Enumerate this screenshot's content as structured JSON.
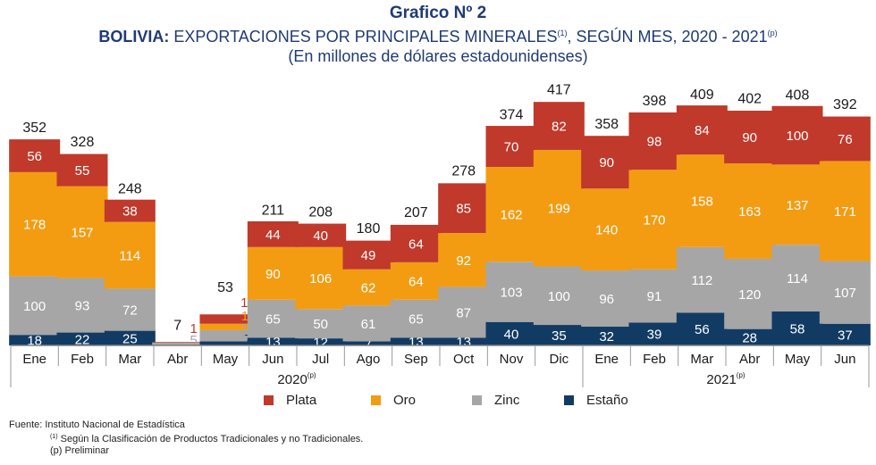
{
  "header": {
    "title": "Grafico Nº 2",
    "subtitle_bold": "BOLIVIA:",
    "subtitle_text": " EXPORTACIONES POR PRINCIPALES MINERALES",
    "subtitle_sup1": "(1)",
    "subtitle_text2": ", SEGÚN MES, 2020 - 2021",
    "subtitle_sup2": "(p)",
    "units": "(En millones de  dólares estadounidenses)"
  },
  "colors": {
    "Plata": "#c0392b",
    "Oro": "#f39c12",
    "Zinc": "#a6a6a6",
    "Estaño": "#123b64"
  },
  "legend": [
    {
      "label": "Plata",
      "color": "#c0392b"
    },
    {
      "label": "Oro",
      "color": "#f39c12"
    },
    {
      "label": "Zinc",
      "color": "#a6a6a6"
    },
    {
      "label": "Estaño",
      "color": "#123b64"
    }
  ],
  "footer": {
    "source": "Fuente: Instituto Nacional de Estadística",
    "note1_sup": "(1)",
    "note1": " Según la Clasificación de Productos Tradicionales y no Tradicionales.",
    "note2": "(p) Preliminar"
  },
  "chart_data": {
    "type": "bar",
    "stacked": true,
    "categories": [
      "Ene",
      "Feb",
      "Mar",
      "Abr",
      "May",
      "Jun",
      "Jul",
      "Ago",
      "Sep",
      "Oct",
      "Nov",
      "Dic",
      "Ene",
      "Feb",
      "Mar",
      "Abr",
      "May",
      "Jun"
    ],
    "groups": [
      {
        "label": "2020",
        "label_sup": "(p)",
        "span": [
          0,
          11
        ]
      },
      {
        "label": "2021",
        "label_sup": "(p)",
        "span": [
          12,
          17
        ]
      }
    ],
    "series": [
      {
        "name": "Estaño",
        "values": [
          18,
          22,
          25,
          0,
          7,
          13,
          12,
          7,
          13,
          13,
          40,
          35,
          32,
          39,
          56,
          28,
          58,
          37
        ]
      },
      {
        "name": "Zinc",
        "values": [
          100,
          93,
          72,
          5,
          19,
          65,
          50,
          61,
          65,
          87,
          103,
          100,
          96,
          91,
          112,
          120,
          114,
          107
        ]
      },
      {
        "name": "Oro",
        "values": [
          178,
          157,
          114,
          0,
          11,
          90,
          106,
          62,
          64,
          92,
          162,
          199,
          140,
          170,
          158,
          163,
          137,
          171
        ]
      },
      {
        "name": "Plata",
        "values": [
          56,
          55,
          38,
          1,
          16,
          44,
          40,
          49,
          64,
          85,
          70,
          82,
          90,
          98,
          84,
          90,
          100,
          76
        ]
      }
    ],
    "totals": [
      352,
      328,
      248,
      7,
      53,
      211,
      208,
      180,
      207,
      278,
      374,
      417,
      358,
      398,
      409,
      402,
      408,
      392
    ],
    "ylim": [
      0,
      430
    ],
    "grid": false,
    "legend_position": "bottom"
  }
}
